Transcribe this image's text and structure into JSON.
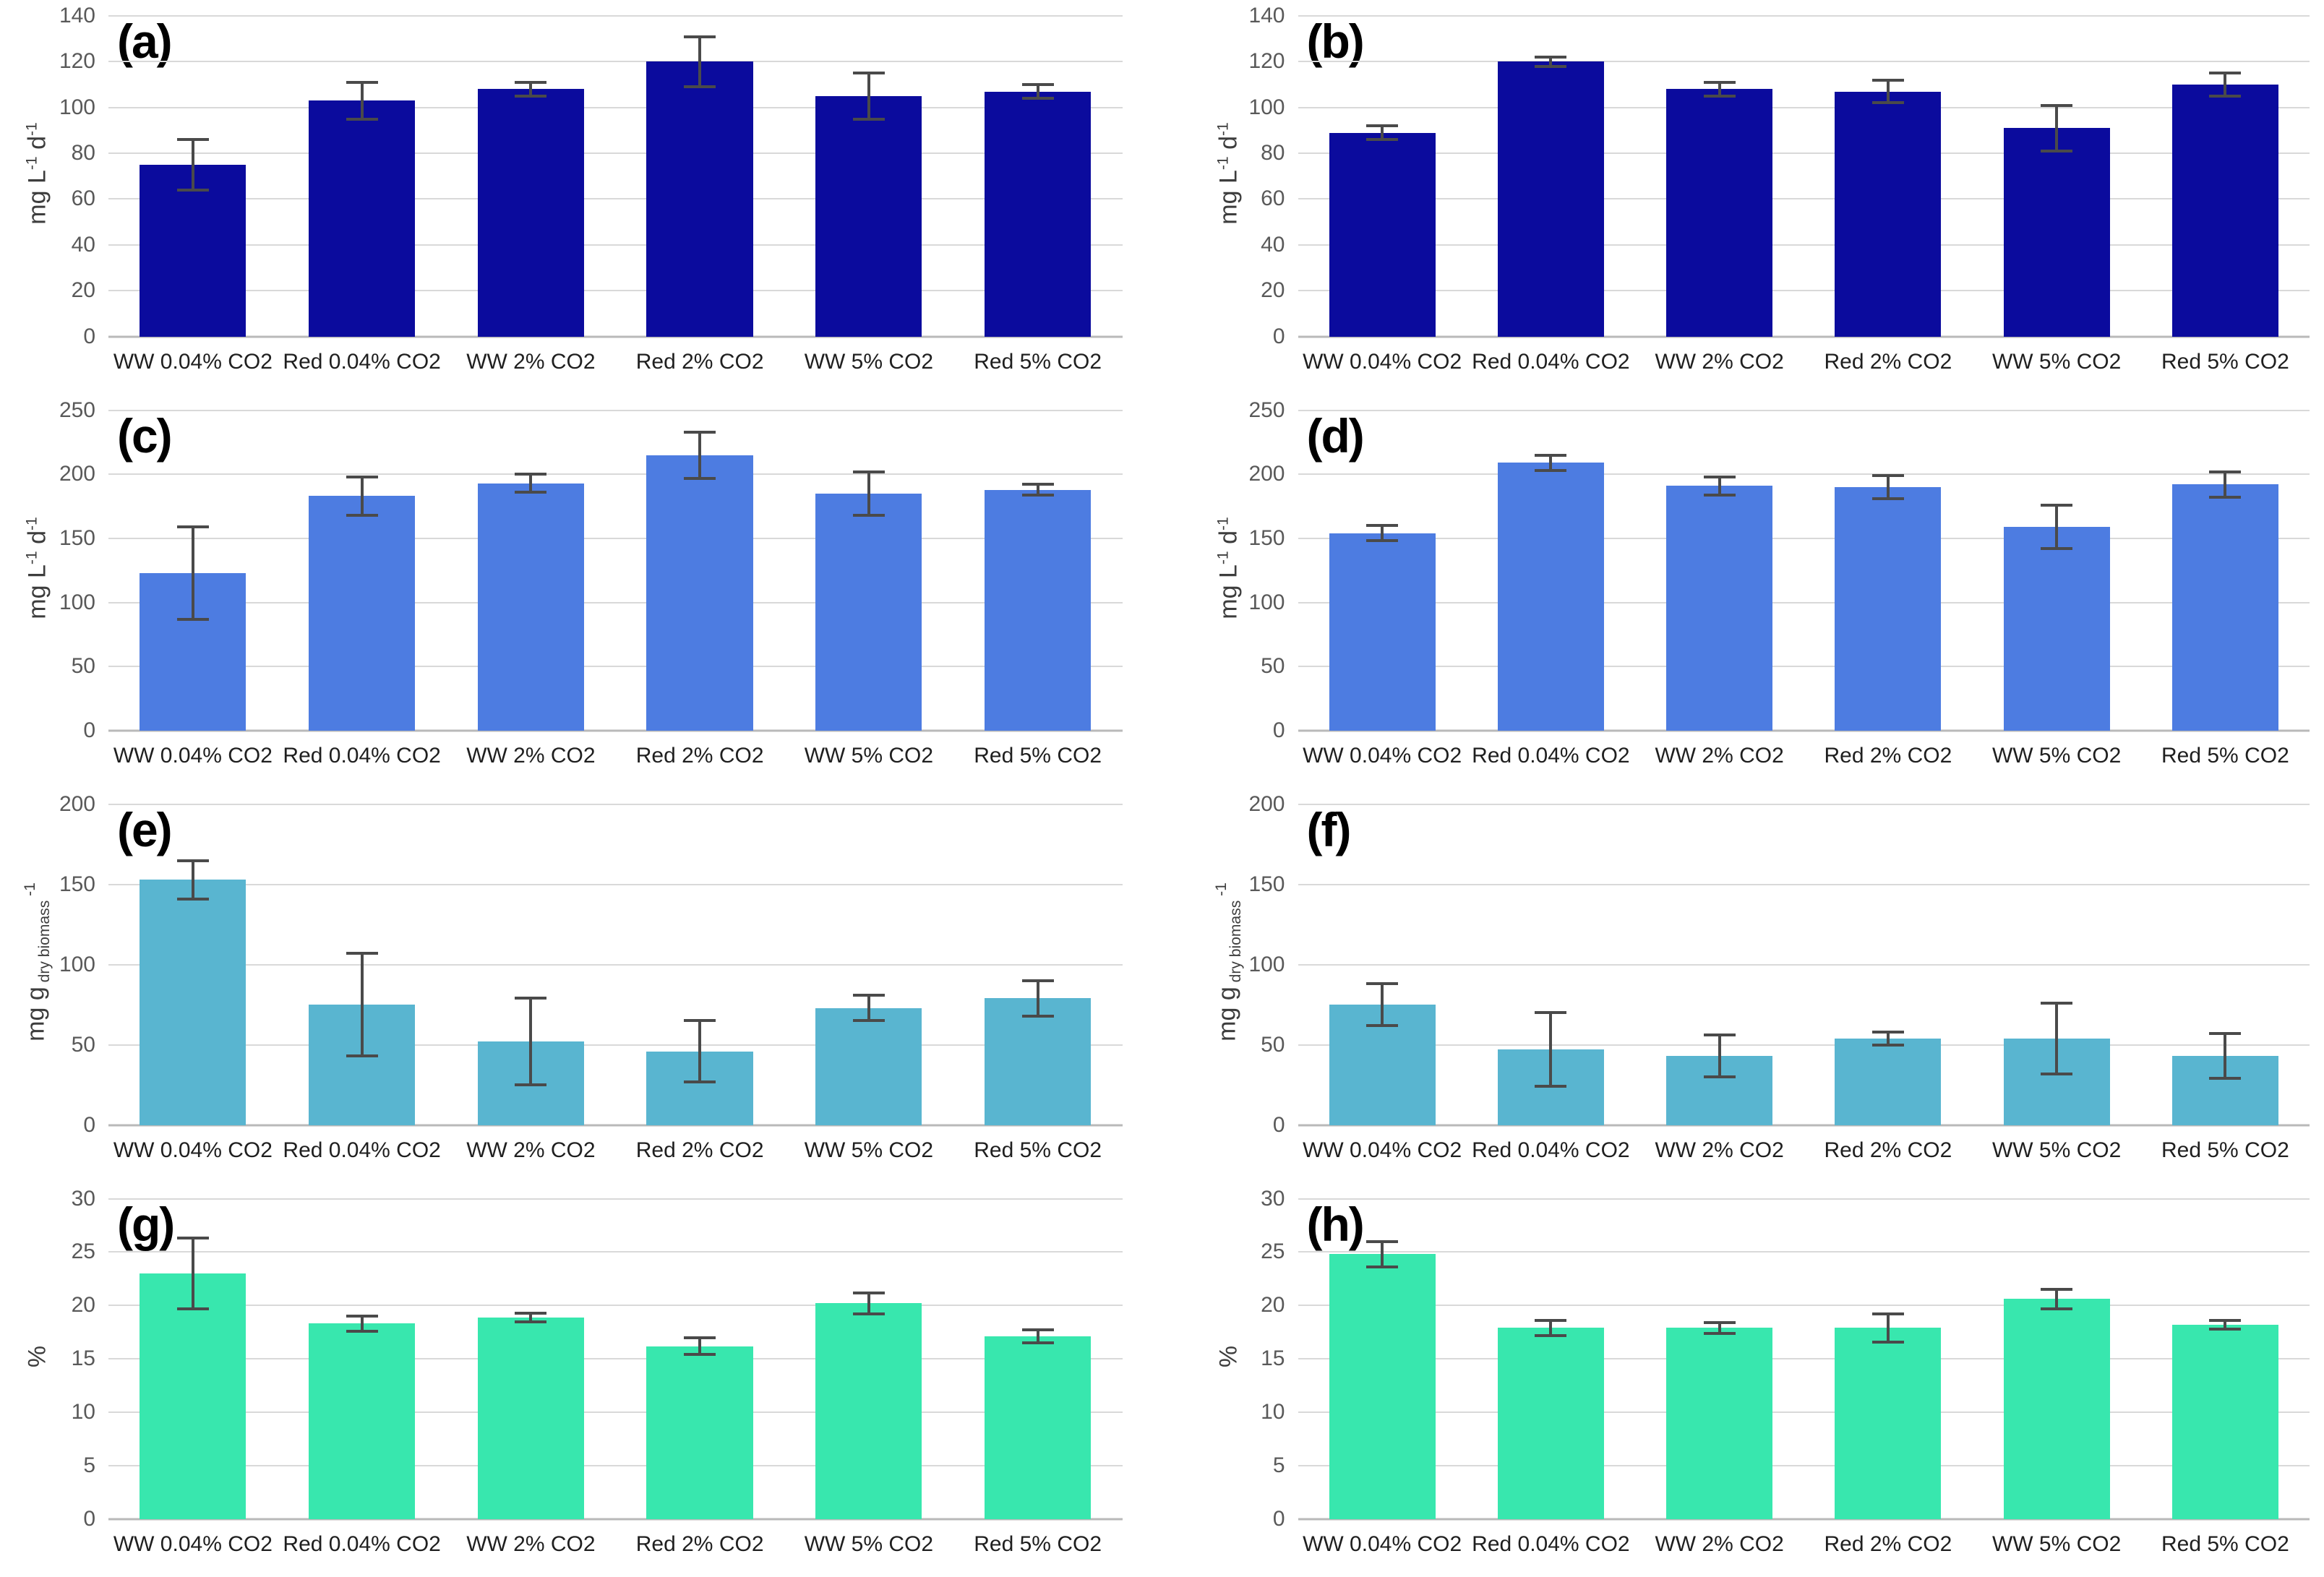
{
  "figure": {
    "background": "#ffffff",
    "layout": "4 rows x 2 columns of bar charts",
    "error_bar_color": "#4a4a4a",
    "gridline_color": "#d9d9d9"
  },
  "categories": [
    "WW 0.04% CO2",
    "Red 0.04% CO2",
    "WW 2% CO2",
    "Red 2% CO2",
    "WW 5% CO2",
    "Red 5% CO2"
  ],
  "chart_data": [
    {
      "type": "bar",
      "panel_label": "(a)",
      "ylabel_parts": [
        {
          "text": "mg L",
          "v": "n"
        },
        {
          "text": "-1",
          "v": "sup"
        },
        {
          "text": " d",
          "v": "n"
        },
        {
          "text": "-1",
          "v": "sup"
        }
      ],
      "ylim": [
        0,
        140
      ],
      "ystep": 20,
      "grid": true,
      "bar_color": "#0b0b9d",
      "categories": [
        "WW 0.04% CO2",
        "Red 0.04% CO2",
        "WW 2% CO2",
        "Red 2% CO2",
        "WW 5% CO2",
        "Red 5% CO2"
      ],
      "values": [
        75,
        103,
        108,
        120,
        105,
        107
      ],
      "errors": [
        11,
        8,
        3,
        11,
        10,
        3
      ]
    },
    {
      "type": "bar",
      "panel_label": "(b)",
      "ylabel_parts": [
        {
          "text": "mg L",
          "v": "n"
        },
        {
          "text": "-1",
          "v": "sup"
        },
        {
          "text": " d",
          "v": "n"
        },
        {
          "text": "-1",
          "v": "sup"
        }
      ],
      "ylim": [
        0,
        140
      ],
      "ystep": 20,
      "grid": true,
      "bar_color": "#0b0b9d",
      "categories": [
        "WW 0.04% CO2",
        "Red 0.04% CO2",
        "WW 2% CO2",
        "Red 2% CO2",
        "WW 5% CO2",
        "Red 5% CO2"
      ],
      "values": [
        89,
        120,
        108,
        107,
        91,
        110
      ],
      "errors": [
        3,
        2,
        3,
        5,
        10,
        5
      ]
    },
    {
      "type": "bar",
      "panel_label": "(c)",
      "ylabel_parts": [
        {
          "text": "mg L",
          "v": "n"
        },
        {
          "text": "-1",
          "v": "sup"
        },
        {
          "text": " d",
          "v": "n"
        },
        {
          "text": "-1",
          "v": "sup"
        }
      ],
      "ylim": [
        0,
        250
      ],
      "ystep": 50,
      "grid": true,
      "bar_color": "#4d7ce1",
      "categories": [
        "WW 0.04% CO2",
        "Red 0.04% CO2",
        "WW 2% CO2",
        "Red 2% CO2",
        "WW 5% CO2",
        "Red 5% CO2"
      ],
      "values": [
        123,
        183,
        193,
        215,
        185,
        188
      ],
      "errors": [
        36,
        15,
        7,
        18,
        17,
        4
      ]
    },
    {
      "type": "bar",
      "panel_label": "(d)",
      "ylabel_parts": [
        {
          "text": "mg L",
          "v": "n"
        },
        {
          "text": "-1",
          "v": "sup"
        },
        {
          "text": " d",
          "v": "n"
        },
        {
          "text": "-1",
          "v": "sup"
        }
      ],
      "ylim": [
        0,
        250
      ],
      "ystep": 50,
      "grid": true,
      "bar_color": "#4d7ce1",
      "categories": [
        "WW 0.04% CO2",
        "Red 0.04% CO2",
        "WW 2% CO2",
        "Red 2% CO2",
        "WW 5% CO2",
        "Red 5% CO2"
      ],
      "values": [
        154,
        209,
        191,
        190,
        159,
        192
      ],
      "errors": [
        6,
        6,
        7,
        9,
        17,
        10
      ]
    },
    {
      "type": "bar",
      "panel_label": "(e)",
      "ylabel_parts": [
        {
          "text": "mg g",
          "v": "n"
        },
        {
          "text": " dry biomass",
          "v": "sub"
        },
        {
          "text": " -1",
          "v": "sup"
        }
      ],
      "ylim": [
        0,
        200
      ],
      "ystep": 50,
      "grid": true,
      "bar_color": "#59b5d0",
      "categories": [
        "WW 0.04% CO2",
        "Red 0.04% CO2",
        "WW 2% CO2",
        "Red 2% CO2",
        "WW 5% CO2",
        "Red 5% CO2"
      ],
      "values": [
        153,
        75,
        52,
        46,
        73,
        79
      ],
      "errors": [
        12,
        32,
        27,
        19,
        8,
        11
      ]
    },
    {
      "type": "bar",
      "panel_label": "(f)",
      "ylabel_parts": [
        {
          "text": "mg g",
          "v": "n"
        },
        {
          "text": " dry biomass",
          "v": "sub"
        },
        {
          "text": " -1",
          "v": "sup"
        }
      ],
      "ylim": [
        0,
        200
      ],
      "ystep": 50,
      "grid": true,
      "bar_color": "#59b5d0",
      "categories": [
        "WW 0.04% CO2",
        "Red 0.04% CO2",
        "WW 2% CO2",
        "Red 2% CO2",
        "WW 5% CO2",
        "Red 5% CO2"
      ],
      "values": [
        75,
        47,
        43,
        54,
        54,
        43
      ],
      "errors": [
        13,
        23,
        13,
        4,
        22,
        14
      ]
    },
    {
      "type": "bar",
      "panel_label": "(g)",
      "ylabel_parts": [
        {
          "text": "%",
          "v": "n"
        }
      ],
      "ylim": [
        0,
        30
      ],
      "ystep": 5,
      "grid": true,
      "bar_color": "#38e7ae",
      "categories": [
        "WW 0.04% CO2",
        "Red 0.04% CO2",
        "WW 2% CO2",
        "Red 2% CO2",
        "WW 5% CO2",
        "Red 5% CO2"
      ],
      "values": [
        23,
        18.3,
        18.9,
        16.2,
        20.2,
        17.1
      ],
      "errors": [
        3.3,
        0.7,
        0.4,
        0.8,
        1.0,
        0.6
      ]
    },
    {
      "type": "bar",
      "panel_label": "(h)",
      "ylabel_parts": [
        {
          "text": "%",
          "v": "n"
        }
      ],
      "ylim": [
        0,
        30
      ],
      "ystep": 5,
      "grid": true,
      "bar_color": "#38e7ae",
      "categories": [
        "WW 0.04% CO2",
        "Red 0.04% CO2",
        "WW 2% CO2",
        "Red 2% CO2",
        "WW 5% CO2",
        "Red 5% CO2"
      ],
      "values": [
        24.8,
        17.9,
        17.9,
        17.9,
        20.6,
        18.2
      ],
      "errors": [
        1.2,
        0.7,
        0.5,
        1.3,
        0.9,
        0.4
      ]
    }
  ]
}
